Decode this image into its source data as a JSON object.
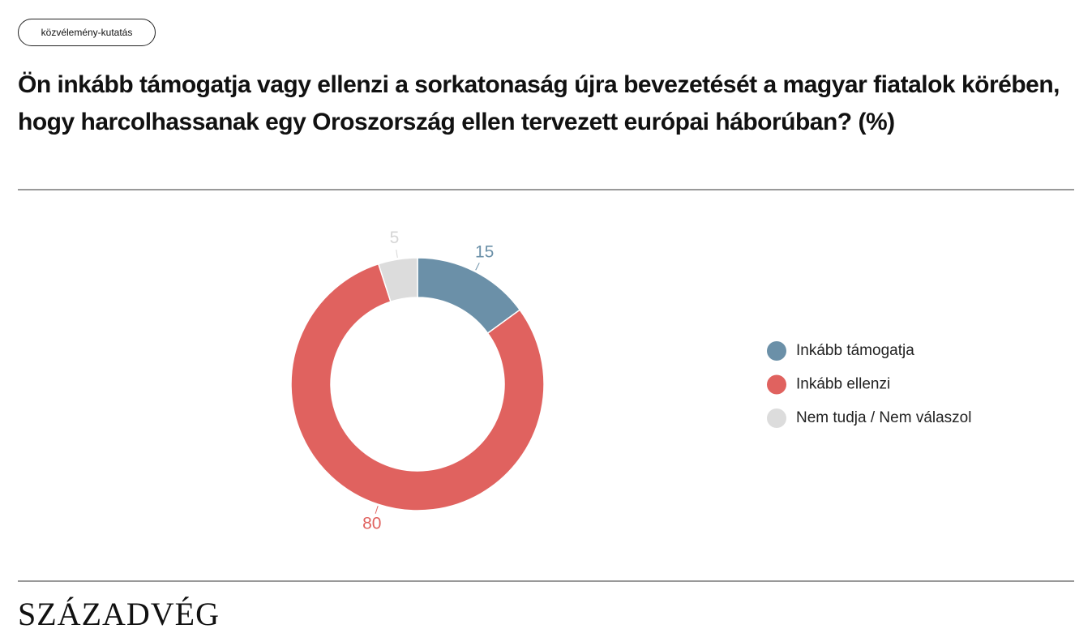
{
  "tag": "közvélemény-kutatás",
  "footer": "SZÁZADVÉG",
  "chart_data": {
    "type": "pie",
    "title": "Ön inkább támogatja vagy ellenzi a sorkatonaság újra bevezetését a magyar fiatalok körében, hogy harcolhassanak egy Oroszország ellen tervezett európai háborúban? (%)",
    "categories": [
      "Inkább támogatja",
      "Inkább ellenzi",
      "Nem tudja / Nem válaszol"
    ],
    "values": [
      15,
      80,
      5
    ],
    "colors": [
      "#6b90a8",
      "#e0625f",
      "#dcdcdc"
    ],
    "label_colors": [
      "#6b90a8",
      "#e0625f",
      "#d6d6d6"
    ]
  }
}
